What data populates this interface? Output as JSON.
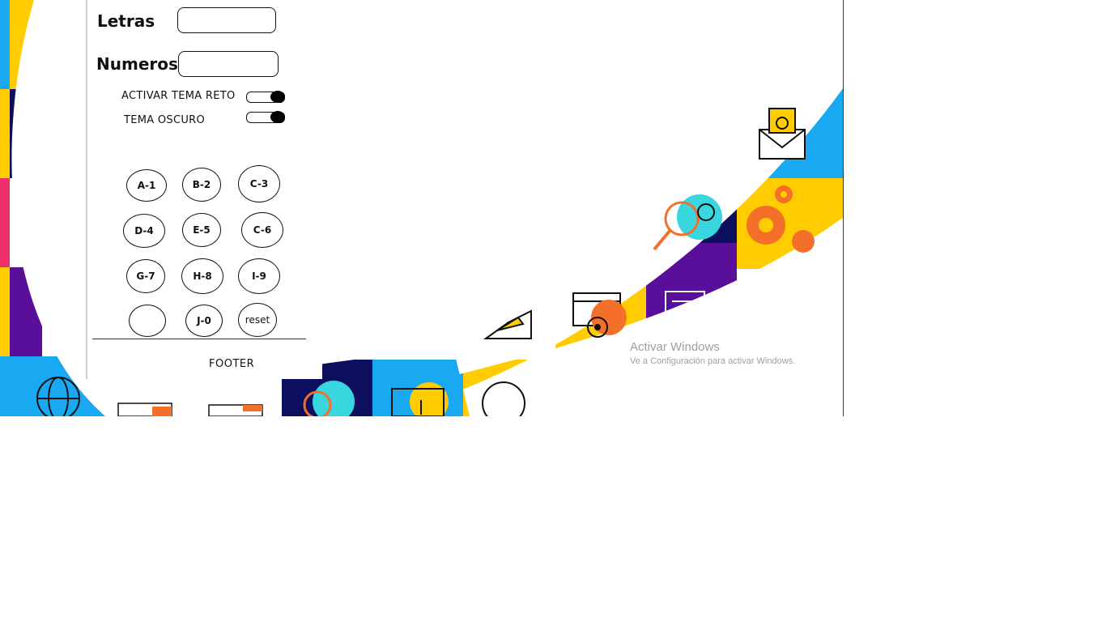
{
  "form": {
    "letras_label": "Letras",
    "letras_value": "",
    "numeros_label": "Numeros",
    "numeros_value": ""
  },
  "toggles": {
    "tema_reto_label": "ACTIVAR TEMA RETO",
    "tema_reto_on": true,
    "tema_oscuro_label": "TEMA OSCURO",
    "tema_oscuro_on": true
  },
  "keypad": {
    "keys": [
      "A-1",
      "B-2",
      "C-3",
      "D-4",
      "E-5",
      "C-6",
      "G-7",
      "H-8",
      "I-9",
      "",
      "J-0",
      "reset"
    ]
  },
  "footer": {
    "text": "FOOTER"
  },
  "watermark": {
    "title": "Activar Windows",
    "subtitle": "Ve a Configuración para activar Windows."
  },
  "colors": {
    "navy": "#0b0f5e",
    "sky": "#19a9f2",
    "yellow": "#ffcc00",
    "pink": "#ef2f6b",
    "purple": "#5a0f9a",
    "orange": "#f4702a",
    "teal": "#39d6e0"
  }
}
